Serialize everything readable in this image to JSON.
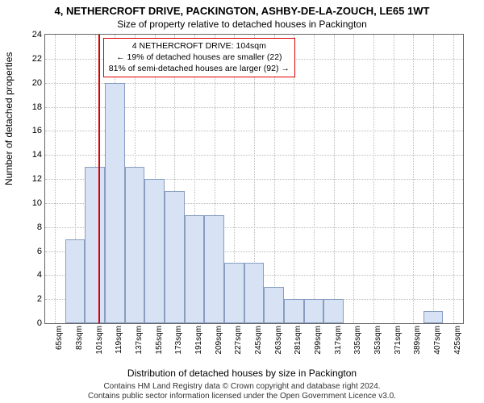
{
  "title": "4, NETHERCROFT DRIVE, PACKINGTON, ASHBY-DE-LA-ZOUCH, LE65 1WT",
  "subtitle": "Size of property relative to detached houses in Packington",
  "ylabel": "Number of detached properties",
  "xlabel": "Distribution of detached houses by size in Packington",
  "footer1": "Contains HM Land Registry data © Crown copyright and database right 2024.",
  "footer2": "Contains public sector information licensed under the Open Government Licence v3.0.",
  "chart": {
    "type": "histogram",
    "background_color": "#ffffff",
    "grid_color": "#bbbbbb",
    "axis_color": "#666666",
    "bar_fill": "#d7e3f4",
    "bar_stroke": "#889dc0",
    "marker_color": "#dd0000",
    "annotation_border": "#dd0000",
    "ymin": 0,
    "ymax": 24,
    "ytick_step": 2,
    "xmin": 56,
    "xmax": 434,
    "xtick_start": 65,
    "xtick_step": 18,
    "xtick_count": 21,
    "xtick_suffix": "sqm",
    "bin_start": 56,
    "bin_width": 18,
    "values": [
      0,
      7,
      13,
      20,
      13,
      12,
      11,
      9,
      9,
      5,
      5,
      3,
      2,
      2,
      2,
      0,
      0,
      0,
      0,
      1,
      0
    ],
    "marker_value": 104,
    "annotation": {
      "line1": "4 NETHERCROFT DRIVE: 104sqm",
      "line2": "← 19% of detached houses are smaller (22)",
      "line3": "81% of semi-detached houses are larger (92) →"
    }
  }
}
